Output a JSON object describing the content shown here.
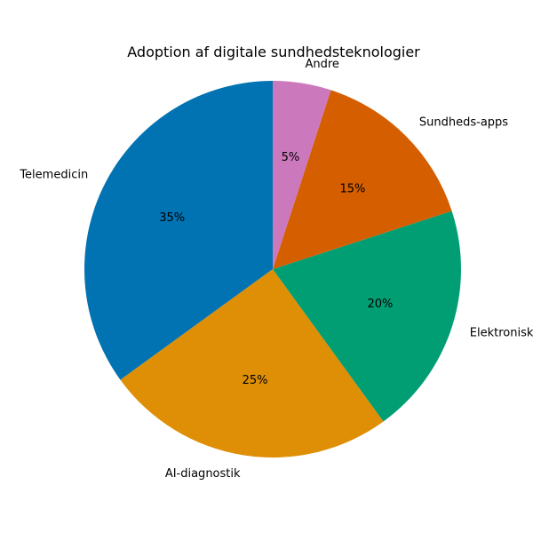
{
  "chart_data": {
    "type": "pie",
    "title": "Adoption af digitale sundhedsteknologier",
    "categories": [
      "Telemedicin",
      "AI-diagnostik",
      "Elektronisk",
      "Sundheds-apps",
      "Andre"
    ],
    "values": [
      35,
      25,
      20,
      15,
      5
    ],
    "value_labels": [
      "35%",
      "25%",
      "20%",
      "15%",
      "5%"
    ],
    "colors": [
      "#0173b2",
      "#de8f05",
      "#029e73",
      "#d55e00",
      "#cc78bc"
    ],
    "start_angle_deg": 90,
    "direction": "counterclockwise",
    "legend": "none"
  }
}
